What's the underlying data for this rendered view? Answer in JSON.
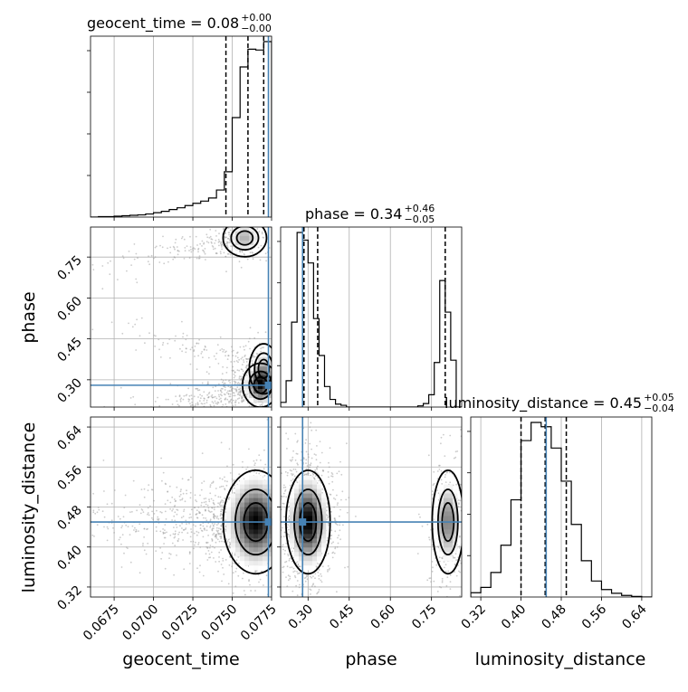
{
  "chart_data": {
    "type": "corner",
    "parameters": [
      "geocent_time",
      "phase",
      "luminosity_distance"
    ],
    "titles": [
      {
        "param": "geocent_time",
        "label": "geocent_time = 0.08",
        "plus": "+0.00",
        "minus": "−0.00"
      },
      {
        "param": "phase",
        "label": "phase = 0.34",
        "plus": "+0.46",
        "minus": "−0.05"
      },
      {
        "param": "luminosity_distance",
        "label": "luminosity_distance = 0.45",
        "plus": "+0.05",
        "minus": "−0.04"
      }
    ],
    "axis_labels": [
      "geocent_time",
      "phase",
      "luminosity_distance"
    ],
    "ranges": {
      "geocent_time": [
        0.066,
        0.0775
      ],
      "phase": [
        0.2,
        0.86
      ],
      "luminosity_distance": [
        0.3,
        0.66
      ]
    },
    "ticks": {
      "geocent_time": {
        "values": [
          0.0675,
          0.07,
          0.0725,
          0.075,
          0.0775
        ],
        "labels": [
          "0.0675",
          "0.0700",
          "0.0725",
          "0.0750",
          "0.0775"
        ]
      },
      "phase": {
        "values": [
          0.3,
          0.45,
          0.6,
          0.75
        ],
        "labels": [
          "0.30",
          "0.45",
          "0.60",
          "0.75"
        ]
      },
      "luminosity_distance": {
        "values": [
          0.32,
          0.4,
          0.48,
          0.56,
          0.64
        ],
        "labels": [
          "0.32",
          "0.40",
          "0.48",
          "0.56",
          "0.64"
        ]
      }
    },
    "truths": {
      "geocent_time": 0.0773,
      "phase": 0.28,
      "luminosity_distance": 0.45
    },
    "quantiles": {
      "geocent_time": [
        0.0746,
        0.076,
        0.077
      ],
      "phase": [
        0.285,
        0.335,
        0.8
      ],
      "luminosity_distance": [
        0.4,
        0.448,
        0.49
      ]
    },
    "histograms": {
      "geocent_time": {
        "edges": [
          0.066,
          0.0665,
          0.067,
          0.0675,
          0.068,
          0.0685,
          0.069,
          0.0695,
          0.07,
          0.0705,
          0.071,
          0.0715,
          0.072,
          0.0725,
          0.073,
          0.0735,
          0.074,
          0.0745,
          0.075,
          0.0755,
          0.076,
          0.0765,
          0.077,
          0.0775
        ],
        "counts": [
          0,
          1,
          1,
          2,
          3,
          4,
          5,
          7,
          10,
          13,
          17,
          21,
          26,
          31,
          36,
          43,
          61,
          102,
          224,
          338,
          378,
          376,
          395
        ]
      },
      "phase": {
        "edges": [
          0.2,
          0.22,
          0.24,
          0.26,
          0.28,
          0.3,
          0.32,
          0.34,
          0.36,
          0.38,
          0.4,
          0.42,
          0.44,
          0.46,
          0.48,
          0.5,
          0.52,
          0.54,
          0.56,
          0.58,
          0.6,
          0.62,
          0.64,
          0.66,
          0.68,
          0.7,
          0.72,
          0.74,
          0.76,
          0.78,
          0.8,
          0.82,
          0.84,
          0.86
        ],
        "counts": [
          8,
          45,
          145,
          298,
          285,
          246,
          151,
          88,
          35,
          13,
          5,
          3,
          0,
          0,
          0,
          0,
          0,
          0,
          0,
          0,
          0,
          0,
          0,
          0,
          0,
          2,
          6,
          21,
          76,
          216,
          162,
          80,
          0
        ]
      },
      "luminosity_distance": {
        "edges": [
          0.3,
          0.32,
          0.34,
          0.36,
          0.38,
          0.4,
          0.42,
          0.44,
          0.46,
          0.48,
          0.5,
          0.52,
          0.54,
          0.56,
          0.58,
          0.6,
          0.62,
          0.64,
          0.66
        ],
        "counts": [
          8,
          18,
          46,
          97,
          182,
          293,
          327,
          319,
          279,
          217,
          136,
          68,
          30,
          14,
          7,
          3,
          1,
          0
        ]
      }
    },
    "density_modes": {
      "geocent_time_vs_phase": [
        {
          "x": 0.0758,
          "y": 0.82,
          "sx": 0.0006,
          "sy": 0.03,
          "w": 0.25
        },
        {
          "x": 0.0768,
          "y": 0.28,
          "sx": 0.0005,
          "sy": 0.035,
          "w": 0.55
        },
        {
          "x": 0.077,
          "y": 0.34,
          "sx": 0.0004,
          "sy": 0.04,
          "w": 0.2
        }
      ],
      "phase_vs_luminosity_distance": [
        {
          "x": 0.3,
          "y": 0.45,
          "sx": 0.035,
          "sy": 0.045,
          "w": 0.72
        },
        {
          "x": 0.81,
          "y": 0.45,
          "sx": 0.025,
          "sy": 0.045,
          "w": 0.28
        }
      ],
      "geocent_time_vs_luminosity_distance": [
        {
          "x": 0.0765,
          "y": 0.45,
          "sx": 0.0009,
          "sy": 0.045,
          "w": 1.0
        }
      ]
    },
    "grid": true,
    "truth_color": "#4682b4",
    "contour_color": "#000000"
  }
}
